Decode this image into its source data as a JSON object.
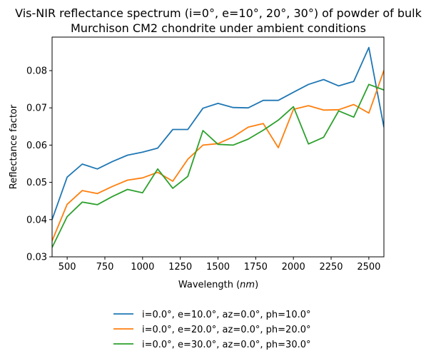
{
  "chart_data": {
    "type": "line",
    "title": "Vis-NIR reflectance spectrum (i=0°, e=10°, 20°, 30°) of powder of bulk",
    "title_line2": "Murchison CM2 chondrite under ambient conditions",
    "xlabel": "Wavelength",
    "xlabel_unit": "nm",
    "ylabel": "Reflectance factor",
    "xlim": [
      400,
      2600
    ],
    "ylim": [
      0.03,
      0.089
    ],
    "xticks": [
      500,
      750,
      1000,
      1250,
      1500,
      1750,
      2000,
      2250,
      2500
    ],
    "yticks": [
      0.03,
      0.04,
      0.05,
      0.06,
      0.07,
      0.08
    ],
    "ytick_labels": [
      "0.03",
      "0.04",
      "0.05",
      "0.06",
      "0.07",
      "0.08"
    ],
    "grid": false,
    "legend_position": "below",
    "x": [
      400,
      500,
      600,
      700,
      800,
      900,
      1000,
      1100,
      1200,
      1300,
      1400,
      1500,
      1600,
      1700,
      1800,
      1900,
      2000,
      2100,
      2200,
      2300,
      2400,
      2500,
      2600
    ],
    "series": [
      {
        "name": "i=0.0°, e=10.0°, az=0.0°, ph=10.0°",
        "color": "#1f77b4",
        "values": [
          0.04,
          0.0514,
          0.0549,
          0.0536,
          0.0556,
          0.0573,
          0.0581,
          0.0592,
          0.0642,
          0.0642,
          0.0699,
          0.0712,
          0.0701,
          0.07,
          0.072,
          0.072,
          0.0742,
          0.0763,
          0.0776,
          0.0759,
          0.0771,
          0.0862,
          0.0648
        ]
      },
      {
        "name": "i=0.0°, e=20.0°, az=0.0°, ph=20.0°",
        "color": "#ff7f0e",
        "values": [
          0.0343,
          0.0441,
          0.0478,
          0.047,
          0.0489,
          0.0506,
          0.0512,
          0.0527,
          0.0503,
          0.0562,
          0.06,
          0.0604,
          0.0622,
          0.0648,
          0.0658,
          0.0593,
          0.0696,
          0.0706,
          0.0694,
          0.0695,
          0.0709,
          0.0686,
          0.0801
        ]
      },
      {
        "name": "i=0.0°, e=30.0°, az=0.0°, ph=30.0°",
        "color": "#2ca02c",
        "values": [
          0.0325,
          0.0408,
          0.0447,
          0.044,
          0.0462,
          0.0481,
          0.0472,
          0.0536,
          0.0484,
          0.0516,
          0.0639,
          0.0602,
          0.06,
          0.0616,
          0.064,
          0.0667,
          0.0703,
          0.0603,
          0.0621,
          0.0692,
          0.0675,
          0.0763,
          0.0748
        ]
      }
    ]
  }
}
